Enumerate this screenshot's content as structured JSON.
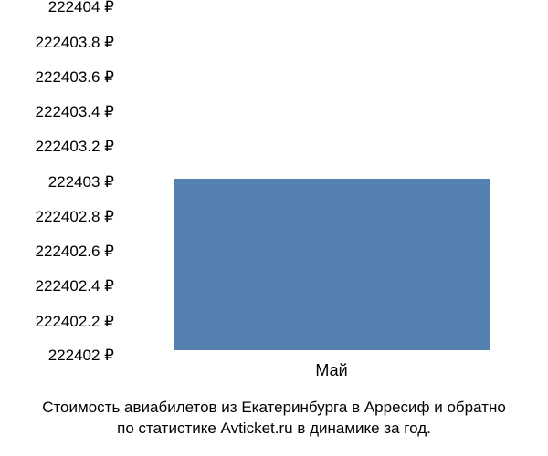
{
  "chart": {
    "type": "bar",
    "ylim": [
      222402,
      222404
    ],
    "ytick_step": 0.2,
    "ytick_labels": [
      "222404 ₽",
      "222403.8 ₽",
      "222403.6 ₽",
      "222403.4 ₽",
      "222403.2 ₽",
      "222403 ₽",
      "222402.8 ₽",
      "222402.6 ₽",
      "222402.4 ₽",
      "222402.2 ₽",
      "222402 ₽"
    ],
    "ytick_positions_pct": [
      0,
      10,
      20,
      30,
      40,
      50,
      60,
      70,
      80,
      90,
      100
    ],
    "categories": [
      "Май"
    ],
    "values": [
      222403
    ],
    "bar_color": "#5481b0",
    "bar_left_pct": 12,
    "bar_width_pct": 76,
    "background_color": "#ffffff",
    "label_fontsize": 17,
    "label_color": "#000000"
  },
  "caption_line1": "Стоимость авиабилетов из Екатеринбурга в Арресиф и обратно",
  "caption_line2": "по статистике Avticket.ru в динамике за год."
}
